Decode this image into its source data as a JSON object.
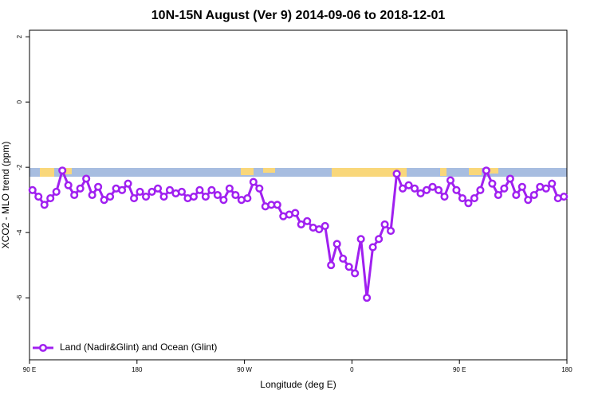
{
  "chart_data": {
    "type": "line",
    "title": "10N-15N August (Ver 9)   2014-09-06 to 2018-12-01",
    "x_label": "Longitude (deg E)",
    "y_label": "XCO2 - MLO trend (ppm)",
    "xlim": [
      90,
      540
    ],
    "ylim": [
      -7.9,
      2.2
    ],
    "xticks": [
      {
        "value": 90,
        "label": "90 E"
      },
      {
        "value": 180,
        "label": "180"
      },
      {
        "value": 270,
        "label": "90 W"
      },
      {
        "value": 360,
        "label": "0"
      },
      {
        "value": 450,
        "label": "90 E"
      },
      {
        "value": 540,
        "label": "180"
      }
    ],
    "yticks": [
      2,
      0,
      -2,
      -4,
      -6
    ],
    "x": [
      92.5,
      97.5,
      102.5,
      107.5,
      112.5,
      117.5,
      122.5,
      127.5,
      132.5,
      137.5,
      142.5,
      147.5,
      152.5,
      157.5,
      162.5,
      167.5,
      172.5,
      177.5,
      182.5,
      187.5,
      192.5,
      197.5,
      202.5,
      207.5,
      212.5,
      217.5,
      222.5,
      227.5,
      232.5,
      237.5,
      242.5,
      247.5,
      252.5,
      257.5,
      262.5,
      267.5,
      272.5,
      277.5,
      282.5,
      287.5,
      292.5,
      297.5,
      302.5,
      307.5,
      312.5,
      317.5,
      322.5,
      327.5,
      332.5,
      337.5,
      342.5,
      347.5,
      352.5,
      357.5,
      362.5,
      367.5,
      372.5,
      377.5,
      382.5,
      387.5,
      392.5,
      397.5,
      402.5,
      407.5,
      412.5,
      417.5,
      422.5,
      427.5,
      432.5,
      437.5,
      442.5,
      447.5,
      452.5,
      457.5,
      462.5,
      467.5,
      472.5,
      477.5,
      482.5,
      487.5,
      492.5,
      497.5,
      502.5,
      507.5,
      512.5,
      517.5,
      522.5,
      527.5,
      532.5,
      537.5
    ],
    "series": [
      {
        "name": "Land (Nadir&Glint) and Ocean (Glint)",
        "color": "#a020f0",
        "values": [
          -2.7,
          -2.9,
          -3.15,
          -2.95,
          -2.75,
          -2.1,
          -2.55,
          -2.85,
          -2.65,
          -2.35,
          -2.85,
          -2.6,
          -3.0,
          -2.9,
          -2.65,
          -2.7,
          -2.5,
          -2.95,
          -2.75,
          -2.9,
          -2.75,
          -2.65,
          -2.9,
          -2.7,
          -2.8,
          -2.75,
          -2.95,
          -2.9,
          -2.7,
          -2.9,
          -2.7,
          -2.85,
          -3.0,
          -2.65,
          -2.85,
          -3.0,
          -2.95,
          -2.45,
          -2.65,
          -3.2,
          -3.15,
          -3.15,
          -3.5,
          -3.45,
          -3.4,
          -3.75,
          -3.65,
          -3.85,
          -3.9,
          -3.8,
          -5.0,
          -4.35,
          -4.8,
          -5.05,
          -5.25,
          -4.2,
          -6.0,
          -4.45,
          -4.2,
          -3.75,
          -3.95,
          -2.2,
          -2.65,
          -2.55,
          -2.65,
          -2.8,
          -2.7,
          -2.6,
          -2.7,
          -2.9,
          -2.4,
          -2.7,
          -2.95,
          -3.1,
          -2.95,
          -2.7,
          -2.1,
          -2.5,
          -2.85,
          -2.65,
          -2.35,
          -2.85,
          -2.6,
          -3.0,
          -2.85,
          -2.6,
          -2.65,
          -2.5,
          -2.95,
          -2.9
        ]
      }
    ],
    "legend": "bottom-left"
  }
}
